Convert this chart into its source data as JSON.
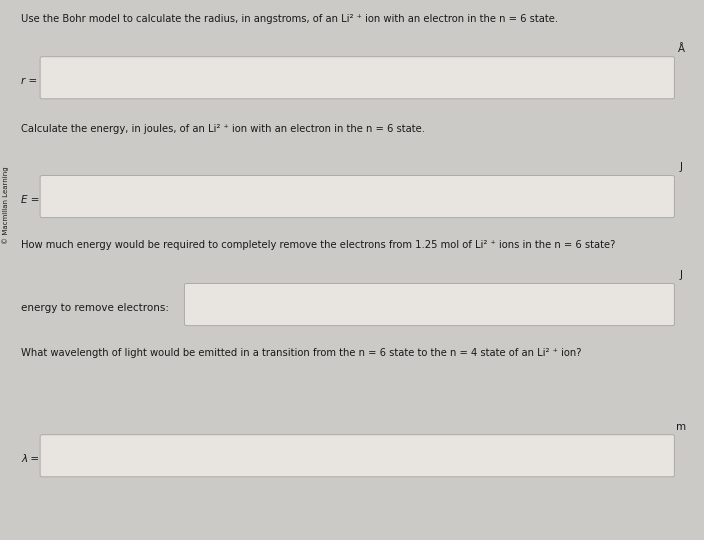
{
  "background_color": "#cccac6",
  "watermark": "© Macmillan Learning",
  "q1_text": "Use the Bohr model to calculate the radius, in angstroms, of an Li² ⁺ ion with an electron in the n = 6 state.",
  "q1_label": "r =",
  "q1_unit": "Å",
  "q2_text": "Calculate the energy, in joules, of an Li² ⁺ ion with an electron in the n = 6 state.",
  "q2_label": "E =",
  "q2_unit": "J",
  "q3_text": "How much energy would be required to completely remove the electrons from 1.25 mol of Li² ⁺ ions in the n = 6 state?",
  "q3_label": "energy to remove electrons:",
  "q3_unit": "J",
  "q4_text": "What wavelength of light would be emitted in a transition from the n = 6 state to the n = 4 state of an Li² ⁺ ion?",
  "q4_label": "λ =",
  "q4_unit": "m",
  "box_facecolor": "#e8e5e0",
  "box_edgecolor": "#aaaaaa",
  "text_color": "#1a1a1a",
  "font_size_question": 7.2,
  "font_size_label": 7.5,
  "font_size_unit": 7.5,
  "font_size_watermark": 5.0
}
